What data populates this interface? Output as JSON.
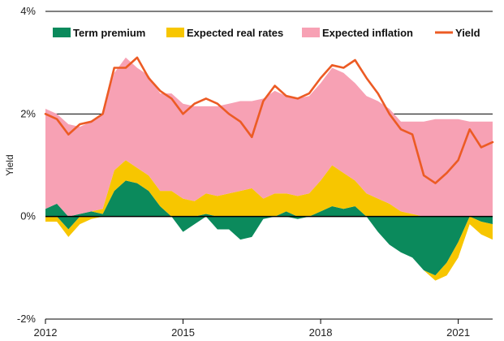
{
  "chart_data": {
    "type": "area",
    "title": "",
    "xlabel": "",
    "ylabel": "Yield",
    "units": "%",
    "xlim": [
      2012.0,
      2021.75
    ],
    "ylim": [
      -2,
      4
    ],
    "x_ticks": [
      2012,
      2015,
      2018,
      2021
    ],
    "x_tick_labels": [
      "2012",
      "2015",
      "2018",
      "2021"
    ],
    "y_ticks": [
      -2,
      0,
      2,
      4
    ],
    "y_tick_labels": [
      "-2%",
      "0%",
      "2%",
      "4%"
    ],
    "grid": "horizontal",
    "stacked": true,
    "legend": {
      "placement": "top",
      "entries": [
        {
          "label": "Term premium",
          "color": "#0b8a5c",
          "marker": "patch"
        },
        {
          "label": "Expected real rates",
          "color": "#f7c600",
          "marker": "patch"
        },
        {
          "label": "Expected inflation",
          "color": "#f7a1b4",
          "marker": "patch"
        },
        {
          "label": "Yield",
          "color": "#ec5b24",
          "marker": "line"
        }
      ]
    },
    "x": [
      2012.0,
      2012.25,
      2012.5,
      2012.75,
      2013.0,
      2013.25,
      2013.5,
      2013.75,
      2014.0,
      2014.25,
      2014.5,
      2014.75,
      2015.0,
      2015.25,
      2015.5,
      2015.75,
      2016.0,
      2016.25,
      2016.5,
      2016.75,
      2017.0,
      2017.25,
      2017.5,
      2017.75,
      2018.0,
      2018.25,
      2018.5,
      2018.75,
      2019.0,
      2019.25,
      2019.5,
      2019.75,
      2020.0,
      2020.25,
      2020.5,
      2020.75,
      2021.0,
      2021.25,
      2021.5,
      2021.75
    ],
    "series": [
      {
        "name": "Term premium",
        "color": "#0b8a5c",
        "values": [
          0.15,
          0.25,
          -0.25,
          0.05,
          0.1,
          0.05,
          0.5,
          0.7,
          0.65,
          0.5,
          0.2,
          0.0,
          -0.3,
          -0.15,
          0.05,
          -0.25,
          -0.25,
          -0.45,
          -0.4,
          -0.05,
          0.0,
          0.1,
          -0.05,
          0.0,
          0.1,
          0.2,
          0.15,
          0.2,
          0.0,
          -0.3,
          -0.55,
          -0.7,
          -0.8,
          -1.05,
          -1.15,
          -0.9,
          -0.5,
          0.0,
          -0.1,
          -0.15
        ]
      },
      {
        "name": "Expected real rates",
        "color": "#f7c600",
        "values": [
          -0.1,
          -0.1,
          -0.15,
          -0.15,
          -0.05,
          0.1,
          0.4,
          0.4,
          0.3,
          0.3,
          0.3,
          0.5,
          0.35,
          0.3,
          0.4,
          0.4,
          0.45,
          0.5,
          0.55,
          0.35,
          0.45,
          0.35,
          0.4,
          0.45,
          0.6,
          0.8,
          0.7,
          0.5,
          0.45,
          0.35,
          0.25,
          0.1,
          0.05,
          0.0,
          -0.1,
          -0.25,
          -0.3,
          -0.15,
          -0.25,
          -0.3
        ]
      },
      {
        "name": "Expected inflation",
        "color": "#f7a1b4",
        "values": [
          1.95,
          1.75,
          1.8,
          1.7,
          1.75,
          1.85,
          1.9,
          2.0,
          1.95,
          1.95,
          1.9,
          1.9,
          1.85,
          1.85,
          1.7,
          1.75,
          1.75,
          1.75,
          1.7,
          1.95,
          2.0,
          1.9,
          1.9,
          1.9,
          1.9,
          1.9,
          1.95,
          1.9,
          1.9,
          1.9,
          1.85,
          1.75,
          1.8,
          1.85,
          1.9,
          1.9,
          1.9,
          1.85,
          1.85,
          1.85
        ]
      },
      {
        "name": "Yield",
        "color": "#ec5b24",
        "type": "line",
        "values": [
          2.0,
          1.9,
          1.6,
          1.8,
          1.85,
          2.0,
          2.9,
          2.9,
          3.1,
          2.7,
          2.45,
          2.3,
          2.0,
          2.2,
          2.3,
          2.2,
          2.0,
          1.85,
          1.55,
          2.25,
          2.55,
          2.35,
          2.3,
          2.4,
          2.7,
          2.95,
          2.9,
          3.05,
          2.7,
          2.4,
          2.0,
          1.7,
          1.6,
          0.8,
          0.65,
          0.85,
          1.1,
          1.7,
          1.35,
          1.45
        ]
      }
    ]
  }
}
